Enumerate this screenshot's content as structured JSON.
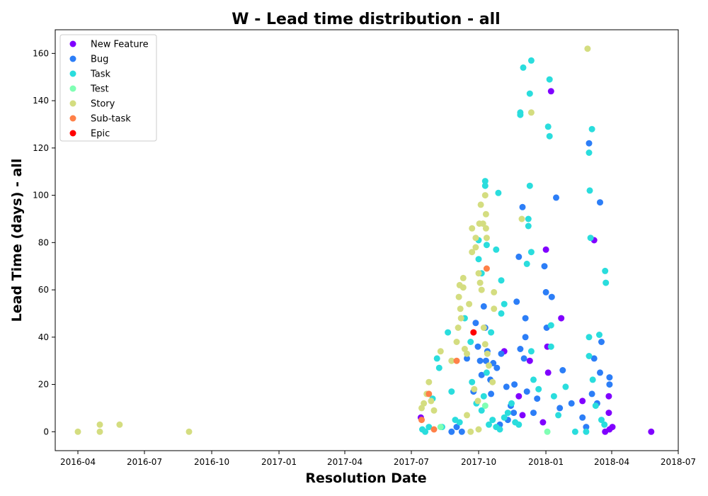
{
  "chart_data": {
    "type": "scatter",
    "title": "W - Lead time distribution - all",
    "xlabel": "Resolution Date",
    "ylabel": "Lead Time (days) - all",
    "xlim": [
      "2016-03-01",
      "2018-07-01"
    ],
    "ylim": [
      -8,
      170
    ],
    "x_ticks": [
      "2016-04",
      "2016-07",
      "2016-10",
      "2017-01",
      "2017-04",
      "2017-07",
      "2017-10",
      "2018-01",
      "2018-04",
      "2018-07"
    ],
    "y_ticks": [
      0,
      20,
      40,
      60,
      80,
      100,
      120,
      140,
      160
    ],
    "grid": false,
    "legend_position": "upper left",
    "series": [
      {
        "name": "New Feature",
        "color": "#8000ff",
        "points": [
          [
            "2017-07-14",
            6
          ],
          [
            "2017-11-05",
            34
          ],
          [
            "2017-11-25",
            15
          ],
          [
            "2017-12-10",
            30
          ],
          [
            "2018-01-01",
            77
          ],
          [
            "2018-01-08",
            144
          ],
          [
            "2018-01-03",
            36
          ],
          [
            "2018-01-04",
            25
          ],
          [
            "2018-01-22",
            48
          ],
          [
            "2018-03-08",
            81
          ],
          [
            "2018-03-28",
            15
          ],
          [
            "2018-03-28",
            8
          ],
          [
            "2018-03-29",
            1
          ],
          [
            "2018-04-02",
            2
          ],
          [
            "2018-05-25",
            0
          ],
          [
            "2018-03-23",
            0
          ],
          [
            "2017-12-28",
            4
          ],
          [
            "2018-02-20",
            13
          ],
          [
            "2017-11-30",
            7
          ]
        ]
      },
      {
        "name": "Bug",
        "color": "#2c7ef7",
        "points": [
          [
            "2017-09-01",
            2
          ],
          [
            "2017-09-08",
            0
          ],
          [
            "2017-09-15",
            31
          ],
          [
            "2017-09-24",
            17
          ],
          [
            "2017-09-27",
            46
          ],
          [
            "2017-09-30",
            36
          ],
          [
            "2017-10-03",
            30
          ],
          [
            "2017-10-05",
            24
          ],
          [
            "2017-10-08",
            53
          ],
          [
            "2017-10-10",
            44
          ],
          [
            "2017-10-11",
            30
          ],
          [
            "2017-10-13",
            34
          ],
          [
            "2017-10-17",
            22
          ],
          [
            "2017-10-21",
            29
          ],
          [
            "2017-10-26",
            27
          ],
          [
            "2017-11-01",
            33
          ],
          [
            "2017-11-08",
            19
          ],
          [
            "2017-11-14",
            11
          ],
          [
            "2017-11-19",
            20
          ],
          [
            "2017-11-22",
            55
          ],
          [
            "2017-11-25",
            74
          ],
          [
            "2017-11-27",
            35
          ],
          [
            "2017-11-30",
            95
          ],
          [
            "2017-12-02",
            31
          ],
          [
            "2017-12-04",
            48
          ],
          [
            "2017-12-04",
            40
          ],
          [
            "2017-12-06",
            17
          ],
          [
            "2017-12-30",
            70
          ],
          [
            "2018-01-01",
            59
          ],
          [
            "2018-01-02",
            44
          ],
          [
            "2018-01-09",
            57
          ],
          [
            "2018-01-15",
            99
          ],
          [
            "2018-01-24",
            26
          ],
          [
            "2018-02-20",
            6
          ],
          [
            "2018-03-01",
            122
          ],
          [
            "2018-03-08",
            31
          ],
          [
            "2018-03-16",
            97
          ],
          [
            "2018-03-18",
            38
          ],
          [
            "2018-03-16",
            25
          ],
          [
            "2018-03-29",
            23
          ],
          [
            "2018-03-29",
            20
          ],
          [
            "2017-10-30",
            3
          ],
          [
            "2017-11-10",
            5
          ],
          [
            "2017-12-15",
            8
          ],
          [
            "2018-01-20",
            10
          ],
          [
            "2018-02-05",
            12
          ],
          [
            "2018-02-25",
            2
          ],
          [
            "2018-03-05",
            16
          ],
          [
            "2018-03-12",
            12
          ],
          [
            "2017-08-25",
            0
          ],
          [
            "2017-10-18",
            16
          ],
          [
            "2017-11-18",
            8
          ],
          [
            "2017-12-20",
            14
          ]
        ]
      },
      {
        "name": "Task",
        "color": "#2adddd",
        "points": [
          [
            "2017-07-16",
            1
          ],
          [
            "2017-07-20",
            0
          ],
          [
            "2017-07-25",
            2
          ],
          [
            "2017-07-30",
            14
          ],
          [
            "2017-08-05",
            31
          ],
          [
            "2017-08-08",
            27
          ],
          [
            "2017-08-20",
            42
          ],
          [
            "2017-08-25",
            17
          ],
          [
            "2017-09-05",
            4
          ],
          [
            "2017-09-12",
            48
          ],
          [
            "2017-09-20",
            38
          ],
          [
            "2017-10-01",
            81
          ],
          [
            "2017-10-01",
            73
          ],
          [
            "2017-10-05",
            67
          ],
          [
            "2017-10-10",
            106
          ],
          [
            "2017-10-10",
            104
          ],
          [
            "2017-10-12",
            79
          ],
          [
            "2017-10-18",
            42
          ],
          [
            "2017-10-25",
            77
          ],
          [
            "2017-10-28",
            101
          ],
          [
            "2017-11-01",
            64
          ],
          [
            "2017-11-05",
            54
          ],
          [
            "2017-11-01",
            50
          ],
          [
            "2017-11-27",
            135
          ],
          [
            "2017-11-27",
            134
          ],
          [
            "2017-12-01",
            154
          ],
          [
            "2017-12-12",
            157
          ],
          [
            "2017-12-10",
            143
          ],
          [
            "2017-12-10",
            104
          ],
          [
            "2017-12-08",
            90
          ],
          [
            "2017-12-08",
            87
          ],
          [
            "2017-12-12",
            76
          ],
          [
            "2017-12-06",
            71
          ],
          [
            "2017-12-12",
            34
          ],
          [
            "2018-01-06",
            149
          ],
          [
            "2018-01-04",
            129
          ],
          [
            "2018-01-06",
            125
          ],
          [
            "2018-01-08",
            45
          ],
          [
            "2018-01-08",
            36
          ],
          [
            "2018-03-01",
            118
          ],
          [
            "2018-03-02",
            102
          ],
          [
            "2018-03-05",
            128
          ],
          [
            "2018-03-03",
            82
          ],
          [
            "2018-03-23",
            68
          ],
          [
            "2018-03-24",
            63
          ],
          [
            "2018-03-15",
            41
          ],
          [
            "2018-03-01",
            40
          ],
          [
            "2018-03-01",
            32
          ],
          [
            "2018-03-06",
            22
          ],
          [
            "2018-03-10",
            11
          ],
          [
            "2018-03-18",
            5
          ],
          [
            "2018-03-22",
            3
          ],
          [
            "2018-02-10",
            0
          ],
          [
            "2018-02-25",
            0
          ],
          [
            "2017-10-15",
            3
          ],
          [
            "2017-10-20",
            5
          ],
          [
            "2017-10-25",
            2
          ],
          [
            "2017-10-30",
            1
          ],
          [
            "2017-11-05",
            6
          ],
          [
            "2017-11-10",
            8
          ],
          [
            "2017-11-15",
            12
          ],
          [
            "2017-11-20",
            4
          ],
          [
            "2017-11-25",
            3
          ],
          [
            "2017-10-05",
            9
          ],
          [
            "2017-10-08",
            15
          ],
          [
            "2017-10-12",
            25
          ],
          [
            "2017-09-28",
            12
          ],
          [
            "2017-12-15",
            22
          ],
          [
            "2017-12-22",
            18
          ],
          [
            "2018-01-12",
            15
          ],
          [
            "2018-01-18",
            7
          ],
          [
            "2018-01-28",
            19
          ],
          [
            "2017-08-12",
            2
          ],
          [
            "2017-08-30",
            5
          ],
          [
            "2017-09-22",
            21
          ]
        ]
      },
      {
        "name": "Test",
        "color": "#80ffb4",
        "points": [
          [
            "2017-08-10",
            2
          ],
          [
            "2017-10-10",
            11
          ],
          [
            "2018-01-03",
            0
          ]
        ]
      },
      {
        "name": "Story",
        "color": "#d4dd80",
        "points": [
          [
            "2016-04-01",
            0
          ],
          [
            "2016-05-01",
            0
          ],
          [
            "2016-05-01",
            3
          ],
          [
            "2016-05-28",
            3
          ],
          [
            "2016-08-31",
            0
          ],
          [
            "2017-07-15",
            10
          ],
          [
            "2017-07-18",
            12
          ],
          [
            "2017-07-22",
            16
          ],
          [
            "2017-07-25",
            21
          ],
          [
            "2017-07-28",
            13
          ],
          [
            "2017-08-01",
            9
          ],
          [
            "2017-08-10",
            34
          ],
          [
            "2017-08-25",
            30
          ],
          [
            "2017-09-01",
            38
          ],
          [
            "2017-09-03",
            44
          ],
          [
            "2017-09-05",
            62
          ],
          [
            "2017-09-04",
            57
          ],
          [
            "2017-09-06",
            52
          ],
          [
            "2017-09-07",
            48
          ],
          [
            "2017-09-10",
            65
          ],
          [
            "2017-09-10",
            61
          ],
          [
            "2017-09-12",
            35
          ],
          [
            "2017-09-15",
            33
          ],
          [
            "2017-09-18",
            54
          ],
          [
            "2017-09-22",
            86
          ],
          [
            "2017-09-22",
            76
          ],
          [
            "2017-09-27",
            82
          ],
          [
            "2017-09-27",
            78
          ],
          [
            "2017-10-02",
            88
          ],
          [
            "2017-10-04",
            96
          ],
          [
            "2017-10-07",
            88
          ],
          [
            "2017-10-10",
            100
          ],
          [
            "2017-10-11",
            92
          ],
          [
            "2017-10-11",
            86
          ],
          [
            "2017-10-12",
            82
          ],
          [
            "2017-10-01",
            67
          ],
          [
            "2017-10-03",
            63
          ],
          [
            "2017-10-05",
            60
          ],
          [
            "2017-10-08",
            44
          ],
          [
            "2017-10-10",
            37
          ],
          [
            "2017-10-13",
            33
          ],
          [
            "2017-10-15",
            28
          ],
          [
            "2017-10-22",
            59
          ],
          [
            "2017-10-22",
            52
          ],
          [
            "2017-11-29",
            90
          ],
          [
            "2017-12-12",
            135
          ],
          [
            "2018-02-27",
            162
          ],
          [
            "2017-09-20",
            0
          ],
          [
            "2017-10-01",
            1
          ],
          [
            "2017-09-15",
            7
          ],
          [
            "2017-09-30",
            13
          ],
          [
            "2017-10-20",
            21
          ],
          [
            "2017-09-25",
            18
          ]
        ]
      },
      {
        "name": "Sub-task",
        "color": "#ff8048",
        "points": [
          [
            "2017-07-15",
            5
          ],
          [
            "2017-07-25",
            16
          ],
          [
            "2017-08-01",
            1
          ],
          [
            "2017-09-01",
            30
          ],
          [
            "2017-10-12",
            69
          ]
        ]
      },
      {
        "name": "Epic",
        "color": "#ff0000",
        "points": [
          [
            "2017-09-24",
            42
          ]
        ]
      }
    ]
  }
}
